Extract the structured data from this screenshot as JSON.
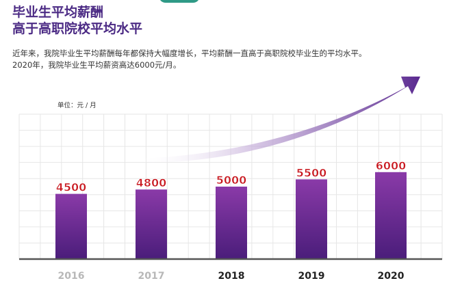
{
  "title_lines": [
    "毕业生平均薪酬",
    "高于高职院校平均水平"
  ],
  "description_lines": [
    "近年来，我院毕业生平均薪酬每年都保持大幅度增长，平均薪酬一直高于高职院校毕业生的平均水平。",
    "2020年，我院毕业生平均薪资高达6000元/月。"
  ],
  "unit_label": "单位：元 / 月",
  "colors": {
    "title": "#4b2a84",
    "bar_top": "#8a3aa8",
    "bar_bottom": "#4a1d7a",
    "value_label": "#c8161d",
    "arrow": "#5a2990",
    "axis": "#555555",
    "year_active": "#222222",
    "year_faded": "#b8b8b8"
  },
  "chart_data": {
    "type": "bar",
    "categories": [
      "2016",
      "2017",
      "2018",
      "2019",
      "2020"
    ],
    "values": [
      4500,
      4800,
      5000,
      5500,
      6000
    ],
    "value_labels": [
      "4500",
      "4800",
      "5000",
      "5500",
      "6000"
    ],
    "title": "",
    "xlabel": "",
    "ylabel": "单位：元 / 月",
    "ylim": [
      0,
      10000
    ],
    "grid": true,
    "annotation": "upward-trend-arrow"
  }
}
